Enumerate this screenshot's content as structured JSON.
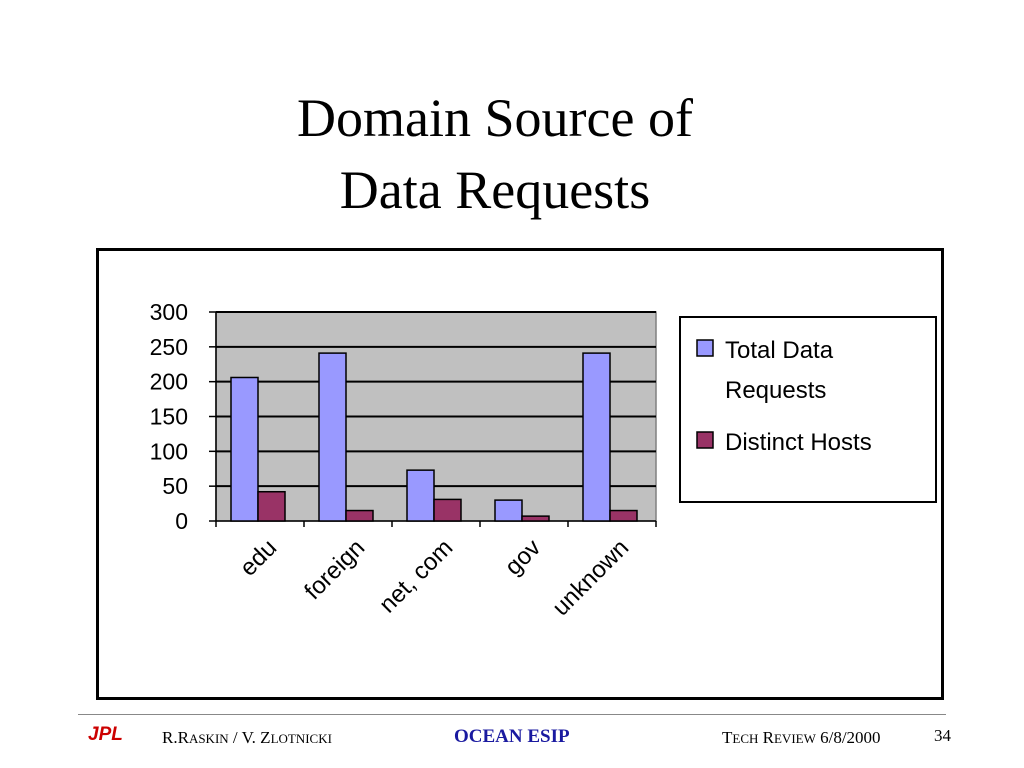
{
  "title": {
    "line1": "Domain Source of",
    "line2": "Data Requests"
  },
  "chart_data": {
    "type": "bar",
    "categories": [
      "edu",
      "foreign",
      "net, com",
      "gov",
      "unknown"
    ],
    "series": [
      {
        "name": "Total Data Requests",
        "values": [
          206,
          241,
          73,
          30,
          241
        ],
        "color": "#9999ff"
      },
      {
        "name": "Distinct Hosts",
        "values": [
          42,
          15,
          31,
          7,
          15
        ],
        "color": "#993366"
      }
    ],
    "ylim": [
      0,
      300
    ],
    "yticks": [
      0,
      50,
      100,
      150,
      200,
      250,
      300
    ],
    "grid": true,
    "plot_background": "#c0c0c0",
    "legend": {
      "position": "right",
      "entries": [
        {
          "lines": [
            "Total Data",
            "Requests"
          ]
        },
        {
          "lines": [
            "Distinct Hosts"
          ]
        }
      ]
    },
    "xlabel": "",
    "ylabel": ""
  },
  "footer": {
    "logo": "JPL",
    "authors": {
      "a_initial": "R.R",
      "a_rest": "ASKIN",
      "sep": " / V. Z",
      "b_rest": "LOTNICKI"
    },
    "center": "OCEAN ESIP",
    "review": {
      "t": "T",
      "ech": "ECH",
      "r": " R",
      "eview": "EVIEW",
      "date": " 6/8/2000"
    },
    "page_number": "34"
  }
}
